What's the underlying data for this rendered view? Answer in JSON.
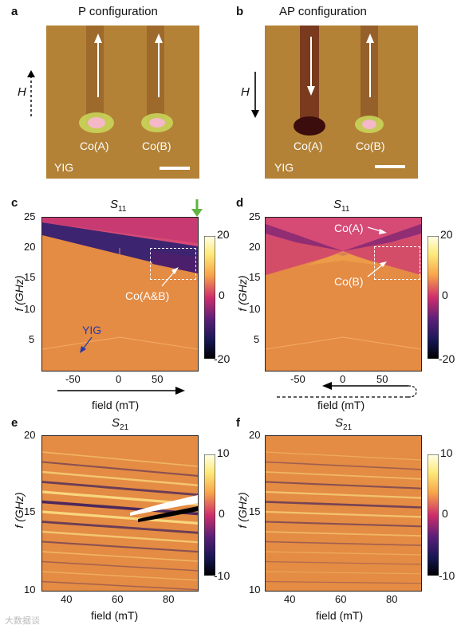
{
  "panels": {
    "a": {
      "label": "a",
      "title": "P configuration",
      "field_label": "H",
      "co_a": "Co(A)",
      "co_b": "Co(B)",
      "substrate": "YIG"
    },
    "b": {
      "label": "b",
      "title": "AP configuration",
      "field_label": "H",
      "co_a": "Co(A)",
      "co_b": "Co(B)",
      "substrate": "YIG"
    },
    "c": {
      "label": "c",
      "title_main": "S",
      "title_sub": "11",
      "ylabel": "f (GHz)",
      "xlabel": "field (mT)",
      "annot_co": "Co(A&B)",
      "annot_yig": "YIG",
      "colorbar_ticks": [
        "20",
        "0",
        "-20"
      ]
    },
    "d": {
      "label": "d",
      "title_main": "S",
      "title_sub": "11",
      "ylabel": "f (GHz)",
      "xlabel": "field (mT)",
      "annot_co_a": "Co(A)",
      "annot_co_b": "Co(B)",
      "colorbar_ticks": [
        "20",
        "0",
        "-20"
      ]
    },
    "e": {
      "label": "e",
      "title_main": "S",
      "title_sub": "21",
      "ylabel": "f (GHz)",
      "xlabel": "field (mT)",
      "colorbar_ticks": [
        "10",
        "0",
        "-10"
      ]
    },
    "f": {
      "label": "f",
      "title_main": "S",
      "title_sub": "21",
      "ylabel": "f (GHz)",
      "xlabel": "field (mT)",
      "colorbar_ticks": [
        "10",
        "0",
        "-10"
      ]
    }
  },
  "chart_data": [
    {
      "panel": "c",
      "type": "heatmap",
      "x_ticks": [
        "-50",
        "0",
        "50"
      ],
      "y_ticks": [
        "25",
        "20",
        "15",
        "10",
        "5"
      ],
      "xlim": [
        -90,
        90
      ],
      "ylim": [
        0,
        25
      ],
      "colorbar_range": [
        -20,
        20
      ]
    },
    {
      "panel": "d",
      "type": "heatmap",
      "x_ticks": [
        "-50",
        "0",
        "50"
      ],
      "y_ticks": [
        "25",
        "20",
        "15",
        "10",
        "5"
      ],
      "xlim": [
        -90,
        90
      ],
      "ylim": [
        0,
        25
      ],
      "colorbar_range": [
        -20,
        20
      ]
    },
    {
      "panel": "e",
      "type": "heatmap",
      "x_ticks": [
        "40",
        "60",
        "80"
      ],
      "y_ticks": [
        "20",
        "15",
        "10"
      ],
      "xlim": [
        30,
        90
      ],
      "ylim": [
        10,
        20
      ],
      "colorbar_range": [
        -10,
        10
      ]
    },
    {
      "panel": "f",
      "type": "heatmap",
      "x_ticks": [
        "40",
        "60",
        "80"
      ],
      "y_ticks": [
        "20",
        "15",
        "10"
      ],
      "xlim": [
        30,
        90
      ],
      "ylim": [
        10,
        20
      ],
      "colorbar_range": [
        -10,
        10
      ]
    }
  ],
  "watermark": "大数据谈"
}
